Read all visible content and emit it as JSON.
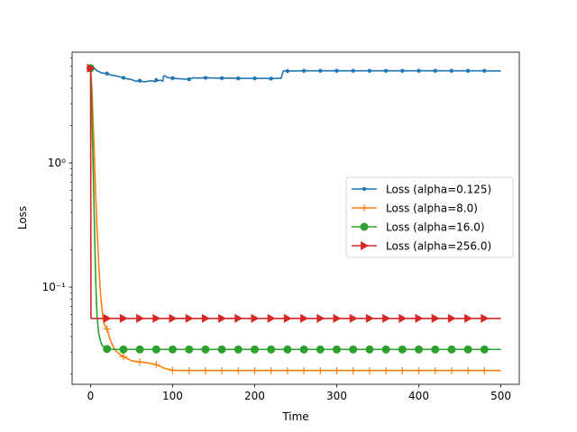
{
  "chart_data": {
    "type": "line",
    "title": "",
    "xlabel": "Time",
    "ylabel": "Loss",
    "xscale": "linear",
    "yscale": "log",
    "xlim": [
      -22.5,
      522.5
    ],
    "ylim": [
      0.0165,
      7.8
    ],
    "xticks": [
      0,
      100,
      200,
      300,
      400,
      500
    ],
    "xtick_labels": [
      "0",
      "100",
      "200",
      "300",
      "400",
      "500"
    ],
    "yticks": [
      0.1,
      1
    ],
    "ytick_labels": [
      "10⁻¹",
      "10⁰"
    ],
    "grid": false,
    "legend_position": "center-right",
    "series": [
      {
        "name": "Loss (alpha=0.125)",
        "color": "#1f77b4",
        "marker": "point",
        "x": [
          0,
          2,
          4,
          6,
          8,
          10,
          14,
          20,
          25,
          30,
          35,
          40,
          45,
          50,
          55,
          60,
          65,
          70,
          75,
          78,
          80,
          82,
          85,
          88,
          89,
          90,
          92,
          95,
          100,
          110,
          120,
          125,
          130,
          140,
          150,
          160,
          170,
          180,
          190,
          200,
          210,
          220,
          225,
          232,
          235,
          240,
          260,
          280,
          300,
          320,
          340,
          360,
          380,
          400,
          420,
          440,
          460,
          480,
          500
        ],
        "y": [
          5.8,
          5.75,
          5.8,
          5.7,
          5.5,
          5.45,
          5.3,
          5.25,
          5.1,
          5.05,
          4.95,
          4.85,
          4.75,
          4.7,
          4.55,
          4.6,
          4.5,
          4.55,
          4.6,
          4.5,
          4.65,
          4.6,
          4.65,
          4.55,
          5.0,
          5.05,
          4.95,
          4.85,
          4.82,
          4.75,
          4.72,
          4.85,
          4.82,
          4.85,
          4.83,
          4.82,
          4.82,
          4.8,
          4.8,
          4.8,
          4.8,
          4.78,
          4.8,
          4.8,
          5.5,
          5.5,
          5.52,
          5.52,
          5.52,
          5.52,
          5.52,
          5.52,
          5.52,
          5.52,
          5.52,
          5.52,
          5.52,
          5.52,
          5.5
        ],
        "marker_x": [
          0,
          20,
          40,
          60,
          80,
          100,
          120,
          140,
          160,
          180,
          200,
          220,
          240,
          260,
          280,
          300,
          320,
          340,
          360,
          380,
          400,
          420,
          440,
          460,
          480
        ]
      },
      {
        "name": "Loss (alpha=8.0)",
        "color": "#ff7f0e",
        "marker": "plus",
        "x": [
          0,
          2,
          4,
          6,
          8,
          10,
          12,
          14,
          16,
          18,
          20,
          25,
          30,
          35,
          40,
          50,
          60,
          70,
          80,
          85,
          90,
          95,
          100,
          110,
          120,
          200,
          300,
          400,
          500
        ],
        "y": [
          5.8,
          3.5,
          1.5,
          0.6,
          0.28,
          0.15,
          0.09,
          0.065,
          0.052,
          0.048,
          0.046,
          0.036,
          0.031,
          0.029,
          0.0275,
          0.0255,
          0.025,
          0.0245,
          0.0238,
          0.023,
          0.0222,
          0.0218,
          0.0214,
          0.0213,
          0.0213,
          0.0213,
          0.0213,
          0.0213,
          0.0213
        ],
        "marker_x": [
          0,
          20,
          40,
          60,
          80,
          100,
          120,
          140,
          160,
          180,
          200,
          220,
          240,
          260,
          280,
          300,
          320,
          340,
          360,
          380,
          400,
          420,
          440,
          460,
          480
        ]
      },
      {
        "name": "Loss (alpha=16.0)",
        "color": "#2ca02c",
        "marker": "circle",
        "x": [
          0,
          1,
          2,
          3,
          4,
          5,
          6,
          7,
          8,
          9,
          10,
          12,
          14,
          16,
          18,
          20,
          25,
          30,
          40,
          60,
          100,
          200,
          300,
          400,
          500
        ],
        "y": [
          5.8,
          4.0,
          2.0,
          1.0,
          0.5,
          0.25,
          0.13,
          0.08,
          0.058,
          0.048,
          0.042,
          0.037,
          0.034,
          0.033,
          0.032,
          0.0318,
          0.0316,
          0.0315,
          0.0315,
          0.0315,
          0.0315,
          0.0315,
          0.0315,
          0.0315,
          0.0315
        ],
        "marker_x": [
          0,
          20,
          40,
          60,
          80,
          100,
          120,
          140,
          160,
          180,
          200,
          220,
          240,
          260,
          280,
          300,
          320,
          340,
          360,
          380,
          400,
          420,
          440,
          460,
          480
        ]
      },
      {
        "name": "Loss (alpha=256.0)",
        "color": "#d62728",
        "marker": "triangle-right",
        "x": [
          0,
          0.5,
          20,
          100,
          200,
          300,
          400,
          500
        ],
        "y": [
          5.8,
          0.056,
          0.056,
          0.056,
          0.056,
          0.056,
          0.056,
          0.056
        ],
        "marker_x": [
          0,
          20,
          40,
          60,
          80,
          100,
          120,
          140,
          160,
          180,
          200,
          220,
          240,
          260,
          280,
          300,
          320,
          340,
          360,
          380,
          400,
          420,
          440,
          460,
          480
        ]
      }
    ]
  }
}
